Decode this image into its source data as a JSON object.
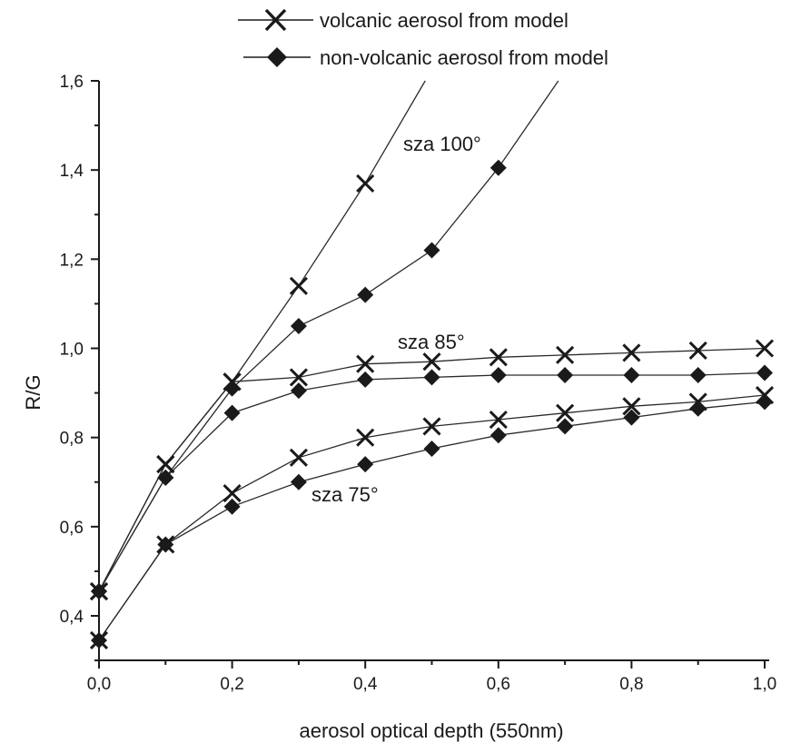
{
  "chart_data": {
    "type": "line",
    "xlabel": "aerosol optical depth (550nm)",
    "ylabel": "R/G",
    "xlim": [
      0.0,
      1.0
    ],
    "ylim": [
      0.3,
      1.6
    ],
    "x_ticks": [
      "0,0",
      "0,2",
      "0,4",
      "0,6",
      "0,8",
      "1,0"
    ],
    "y_ticks": [
      "0,4",
      "0,6",
      "0,8",
      "1,0",
      "1,2",
      "1,4",
      "1,6"
    ],
    "legend": {
      "position": "top",
      "entries": [
        {
          "label": "volcanic aerosol from model",
          "marker": "x"
        },
        {
          "label": "non-volcanic aerosol from model",
          "marker": "diamond"
        }
      ]
    },
    "annotations": [
      {
        "text": "sza 100°",
        "x": 0.46,
        "y": 1.44
      },
      {
        "text": "sza 85°",
        "x": 0.45,
        "y": 1.0
      },
      {
        "text": "sza 75°",
        "x": 0.32,
        "y": 0.67
      }
    ],
    "series": [
      {
        "group": "sza 100°",
        "marker": "x",
        "x": [
          0.0,
          0.1,
          0.2,
          0.3,
          0.4,
          0.49
        ],
        "y": [
          0.455,
          0.74,
          0.925,
          1.14,
          1.37,
          1.6
        ],
        "marked": [
          true,
          true,
          true,
          true,
          true,
          false
        ]
      },
      {
        "group": "sza 100°",
        "marker": "diamond",
        "x": [
          0.0,
          0.1,
          0.2,
          0.3,
          0.4,
          0.5,
          0.6,
          0.69
        ],
        "y": [
          0.455,
          0.71,
          0.91,
          1.05,
          1.12,
          1.22,
          1.405,
          1.6
        ],
        "marked": [
          true,
          true,
          true,
          true,
          true,
          true,
          true,
          false
        ]
      },
      {
        "group": "sza 85°",
        "marker": "x",
        "x": [
          0.0,
          0.1,
          0.2,
          0.3,
          0.4,
          0.5,
          0.6,
          0.7,
          0.8,
          0.9,
          1.0
        ],
        "y": [
          0.455,
          0.74,
          0.925,
          0.935,
          0.965,
          0.97,
          0.98,
          0.985,
          0.99,
          0.995,
          1.0
        ]
      },
      {
        "group": "sza 85°",
        "marker": "diamond",
        "x": [
          0.0,
          0.1,
          0.2,
          0.3,
          0.4,
          0.5,
          0.6,
          0.7,
          0.8,
          0.9,
          1.0
        ],
        "y": [
          0.455,
          0.71,
          0.855,
          0.905,
          0.93,
          0.935,
          0.94,
          0.94,
          0.94,
          0.94,
          0.945
        ]
      },
      {
        "group": "sza 75°",
        "marker": "x",
        "x": [
          0.0,
          0.1,
          0.2,
          0.3,
          0.4,
          0.5,
          0.6,
          0.7,
          0.8,
          0.9,
          1.0
        ],
        "y": [
          0.345,
          0.56,
          0.675,
          0.755,
          0.8,
          0.825,
          0.84,
          0.855,
          0.87,
          0.88,
          0.895
        ]
      },
      {
        "group": "sza 75°",
        "marker": "diamond",
        "x": [
          0.0,
          0.1,
          0.2,
          0.3,
          0.4,
          0.5,
          0.6,
          0.7,
          0.8,
          0.9,
          1.0
        ],
        "y": [
          0.345,
          0.56,
          0.645,
          0.7,
          0.74,
          0.775,
          0.805,
          0.825,
          0.845,
          0.865,
          0.88
        ]
      }
    ]
  }
}
